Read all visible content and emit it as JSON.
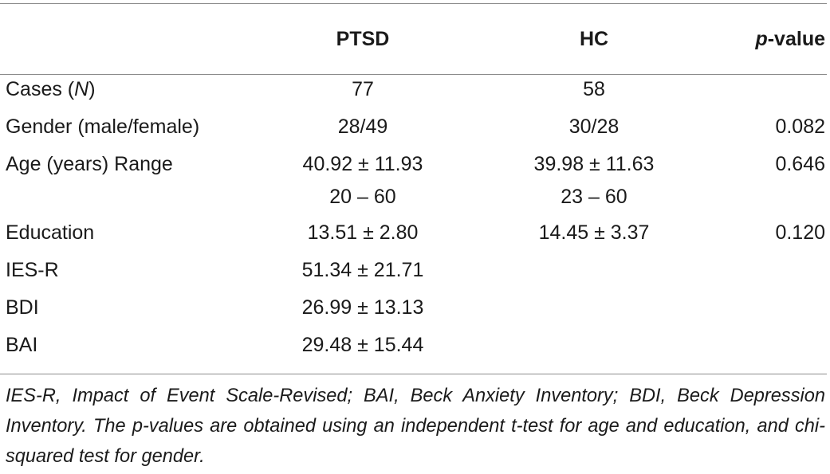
{
  "table": {
    "headers": {
      "label": "",
      "ptsd": "PTSD",
      "hc": "HC",
      "p_prefix": "p",
      "p_suffix": "-value"
    },
    "rows": [
      {
        "label_prefix": "Cases (",
        "label_italic": "N",
        "label_suffix": ")",
        "ptsd": "77",
        "hc": "58",
        "p": ""
      },
      {
        "label": "Gender (male/female)",
        "ptsd": "28/49",
        "hc": "30/28",
        "p": "0.082"
      },
      {
        "label": "Age (years) Range",
        "ptsd": "40.92 ± 11.93",
        "ptsd_range": "20 – 60",
        "hc": "39.98 ± 11.63",
        "hc_range": "23 – 60",
        "p": "0.646"
      },
      {
        "label": "Education",
        "ptsd": "13.51 ± 2.80",
        "hc": "14.45 ± 3.37",
        "p": "0.120"
      },
      {
        "label": "IES-R",
        "ptsd": "51.34 ± 21.71",
        "hc": "",
        "p": ""
      },
      {
        "label": "BDI",
        "ptsd": "26.99 ± 13.13",
        "hc": "",
        "p": ""
      },
      {
        "label": "BAI",
        "ptsd": "29.48 ± 15.44",
        "hc": "",
        "p": ""
      }
    ],
    "footnote": "IES-R, Impact of Event Scale-Revised; BAI, Beck Anxiety Inventory; BDI, Beck Depression Inventory. The p-values are obtained using an independent t-test for age and education, and chi-squared test for gender."
  }
}
